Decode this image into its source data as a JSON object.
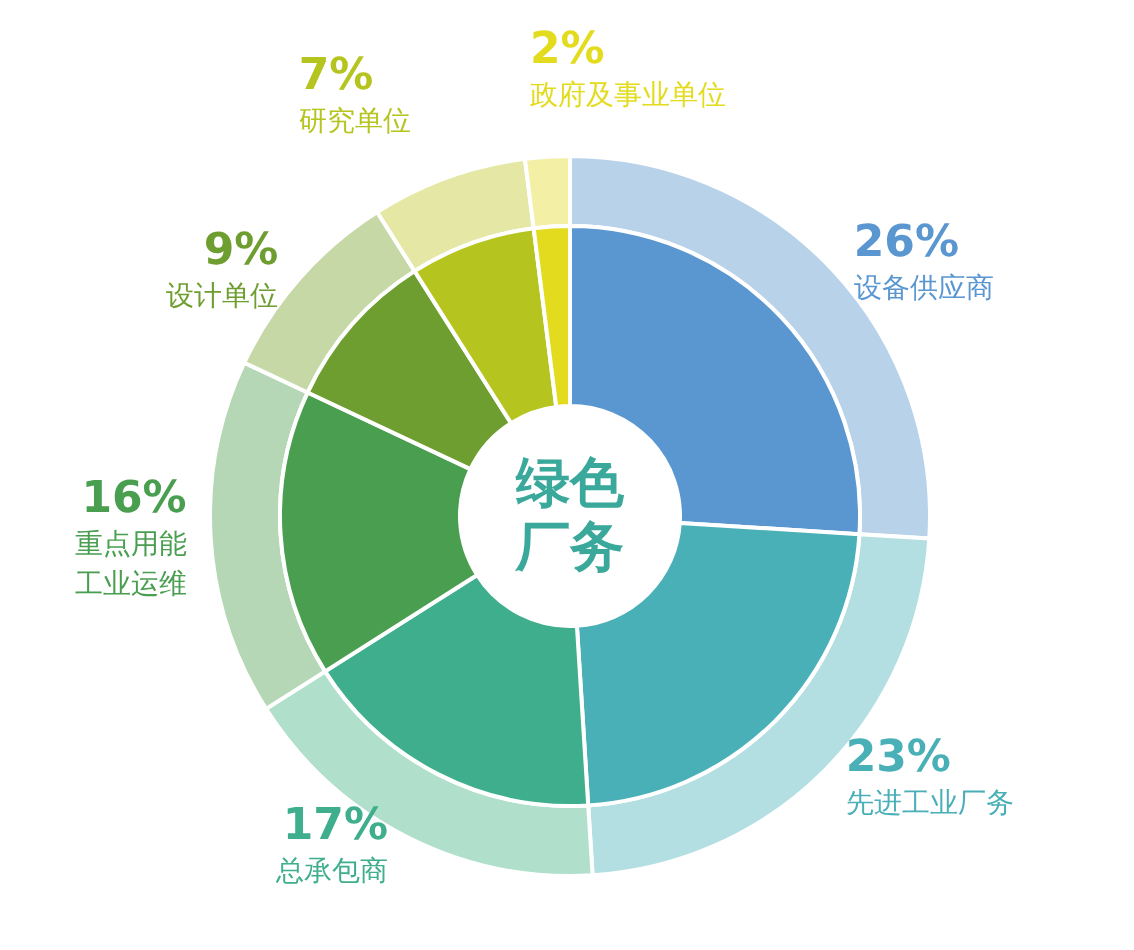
{
  "chart_data": {
    "type": "donut",
    "title": "绿色厂务",
    "categories": [
      "设备供应商",
      "先进工业厂务",
      "总承包商",
      "重点用能工业运维",
      "设计单位",
      "研究单位",
      "政府及事业单位"
    ],
    "series": [
      {
        "values": [
          26,
          23,
          17,
          16,
          9,
          7,
          2
        ],
        "colors": [
          "#b8d2ea",
          "#b3dfe2",
          "#b0dfcc",
          "#b5d7b5",
          "#c5d8a6",
          "#e4e8a4",
          "#f3f0a6"
        ]
      },
      {
        "values": [
          26,
          23,
          17,
          16,
          9,
          7,
          2
        ],
        "colors": [
          "#5a96d0",
          "#4ab0b8",
          "#3fae8c",
          "#4a9e50",
          "#6f9e30",
          "#b5c41e",
          "#e3dc1e"
        ],
        "value_labels": [
          "26%",
          "23%",
          "17%",
          "16%",
          "9%",
          "7%",
          "2%"
        ]
      }
    ],
    "legend": false
  }
}
